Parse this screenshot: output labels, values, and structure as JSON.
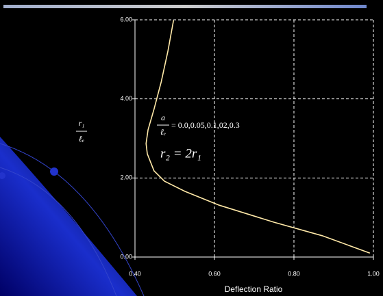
{
  "chart_data": {
    "type": "line",
    "x_label": "Deflection Ratio",
    "y_label": {
      "numerator": "r₁",
      "denominator": "ℓₑ"
    },
    "annotations": [
      {
        "numerator": "a",
        "denominator": "ℓₑ",
        "text": "= 0.0,0.05,0.1,02,0.3"
      },
      {
        "text": "r₂ = 2r₁"
      }
    ],
    "x": [
      0.991,
      0.871,
      0.75,
      0.612,
      0.526,
      0.474,
      0.448,
      0.431,
      0.428,
      0.433,
      0.448,
      0.466,
      0.483,
      0.497
    ],
    "values": [
      0.1,
      0.54,
      0.88,
      1.31,
      1.66,
      1.92,
      2.18,
      2.61,
      2.87,
      3.22,
      3.74,
      4.43,
      5.21,
      5.99
    ],
    "color": "#ffe9a8",
    "xlim": [
      0.4,
      1.0
    ],
    "ylim": [
      0,
      6
    ],
    "xticks": [
      {
        "value": 0.4,
        "label": "0.40"
      },
      {
        "value": 0.6,
        "label": "0.60"
      },
      {
        "value": 0.8,
        "label": "0.80"
      },
      {
        "value": 1.0,
        "label": "1.00"
      }
    ],
    "yticks": [
      {
        "value": 0,
        "label": "0.00"
      },
      {
        "value": 2,
        "label": "2.00"
      },
      {
        "value": 4,
        "label": "4.00"
      },
      {
        "value": 6,
        "label": "6.00"
      }
    ],
    "grid": true
  }
}
